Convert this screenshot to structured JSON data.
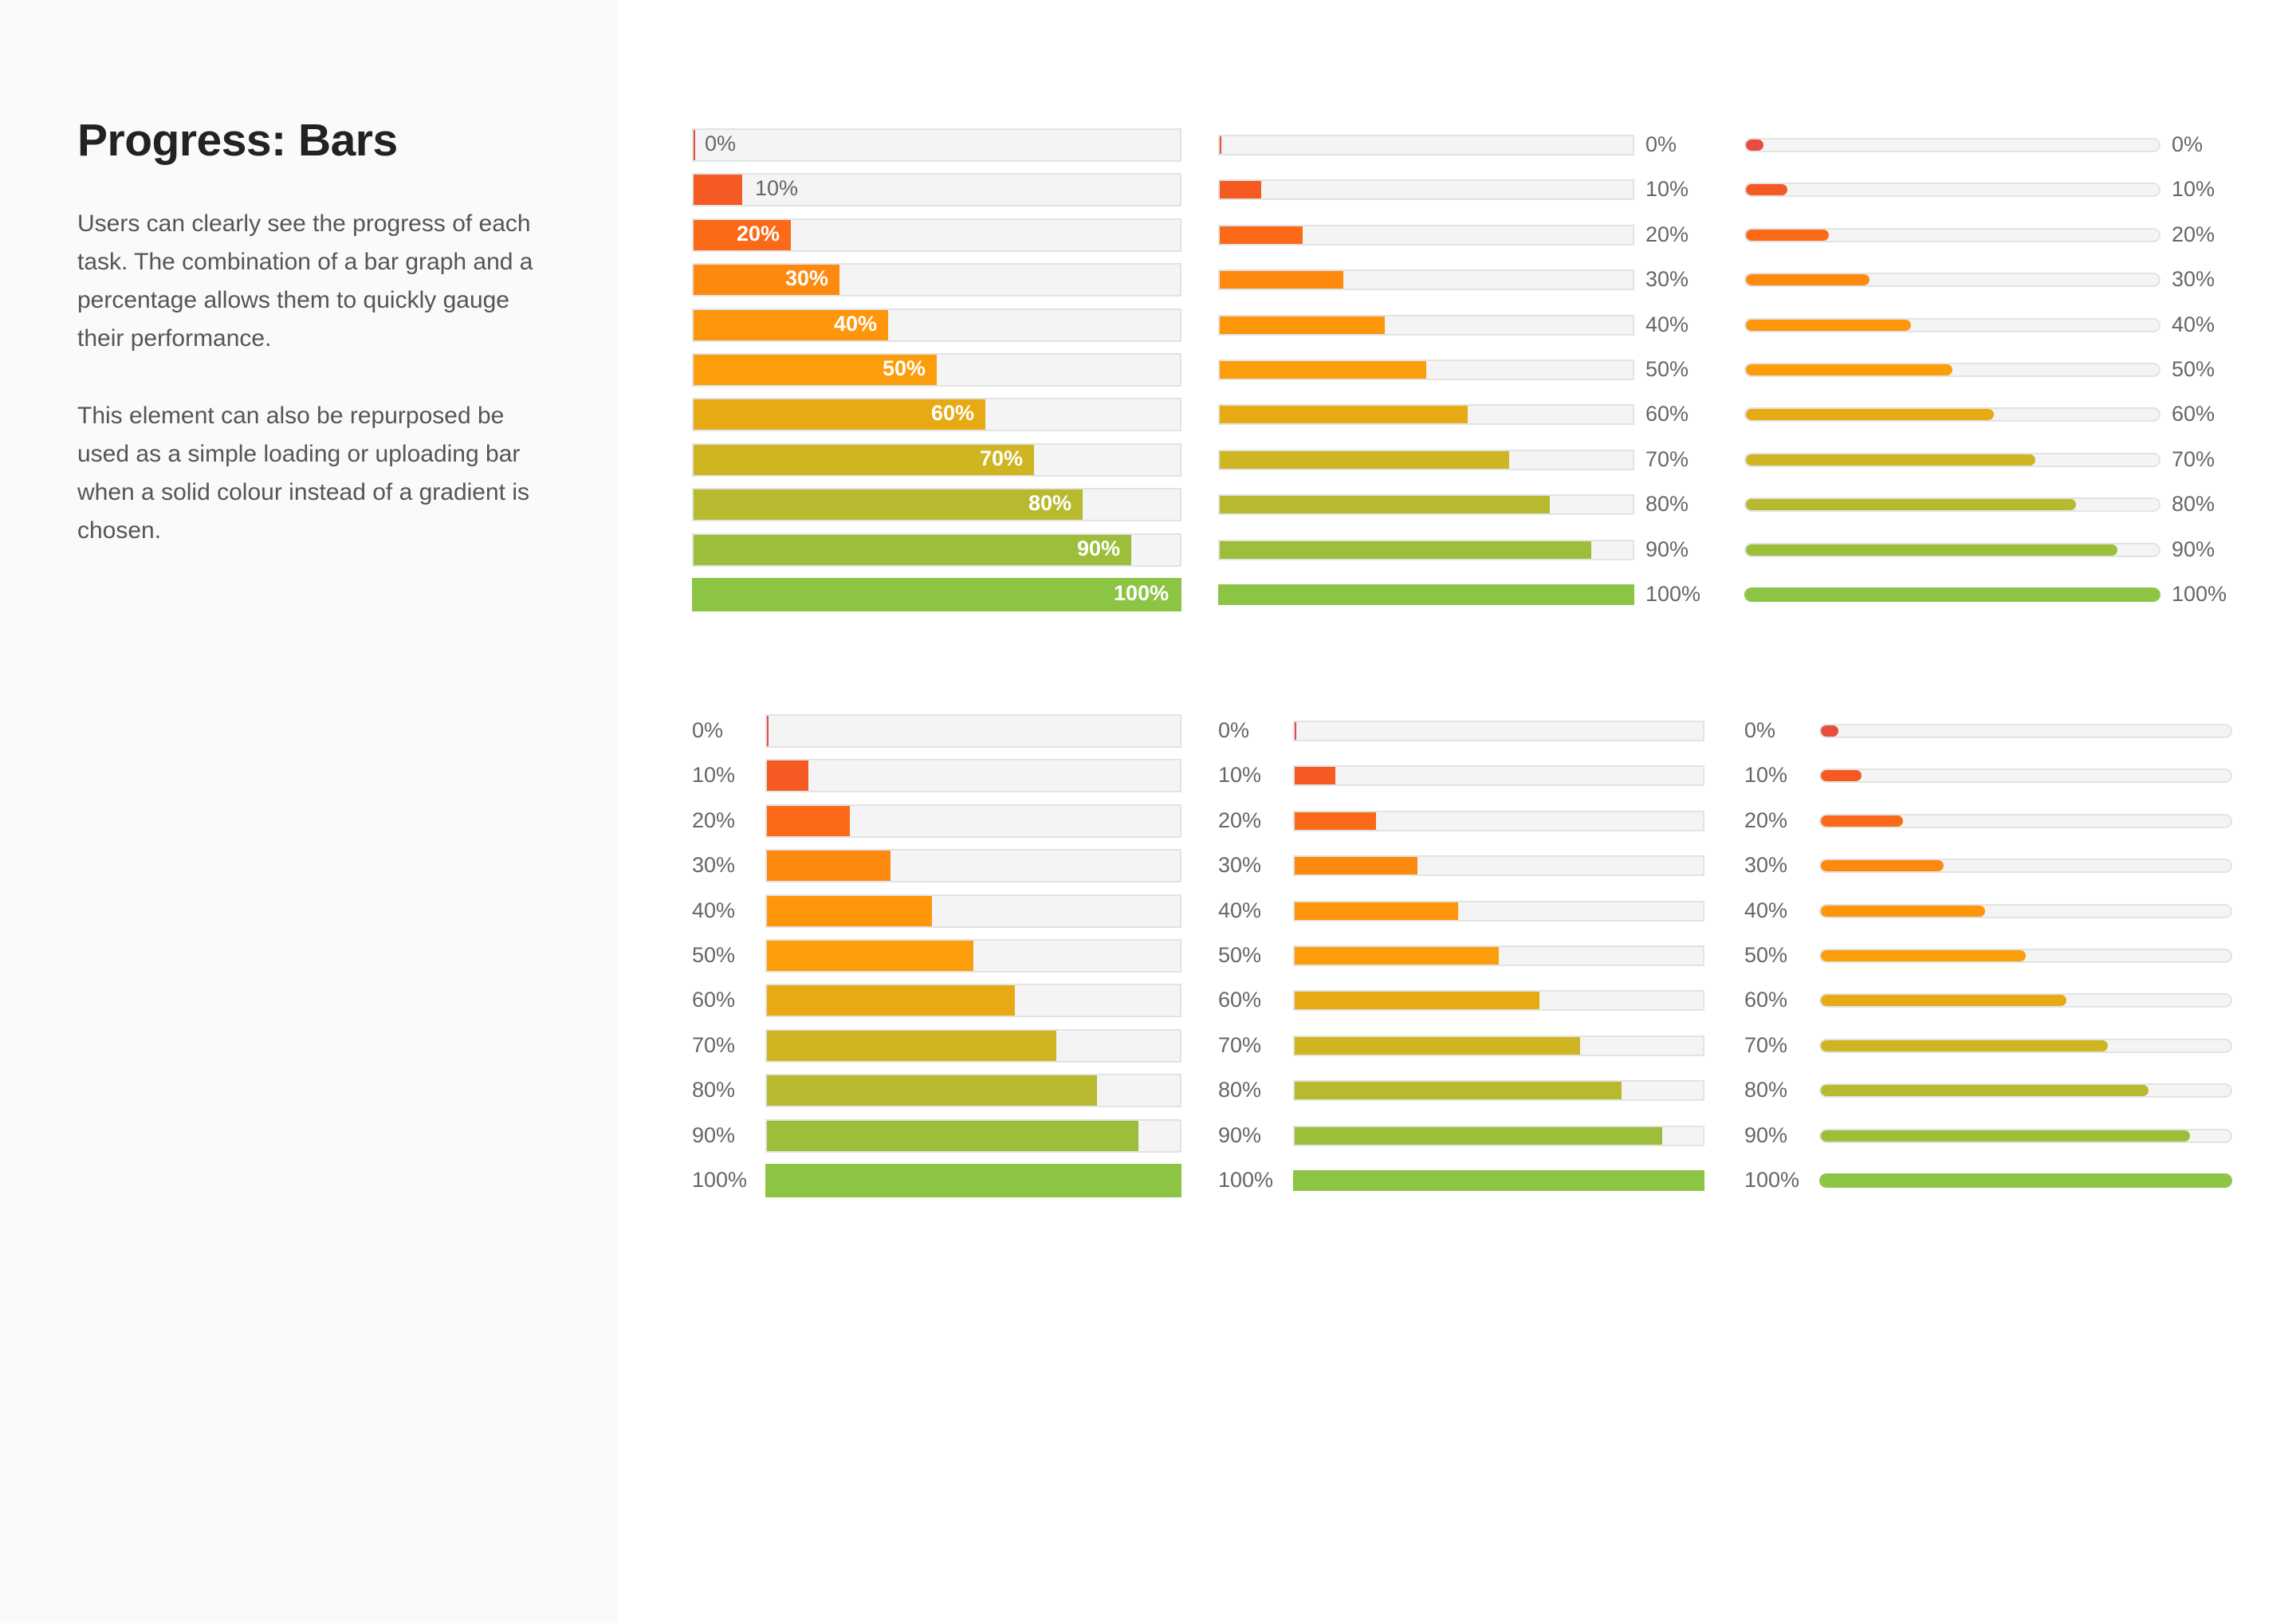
{
  "sidebar": {
    "title": "Progress: Bars",
    "paragraphs": [
      "Users can clearly see the progress of each task. The combination of a bar graph and a percentage allows them to quickly gauge their performance.",
      "This element can also be repurposed be used as a simple loading or uploading bar when a solid colour instead of a gradient is chosen."
    ]
  },
  "levels": [
    {
      "value": 0,
      "label": "0%",
      "color": "#e74c3c"
    },
    {
      "value": 10,
      "label": "10%",
      "color": "#f55a23"
    },
    {
      "value": 20,
      "label": "20%",
      "color": "#fa6a18"
    },
    {
      "value": 30,
      "label": "30%",
      "color": "#fd8a0e"
    },
    {
      "value": 40,
      "label": "40%",
      "color": "#fe960b"
    },
    {
      "value": 50,
      "label": "50%",
      "color": "#fc9d0c"
    },
    {
      "value": 60,
      "label": "60%",
      "color": "#e8aa14"
    },
    {
      "value": 70,
      "label": "70%",
      "color": "#cfb522"
    },
    {
      "value": 80,
      "label": "80%",
      "color": "#b7b92e"
    },
    {
      "value": 90,
      "label": "90%",
      "color": "#9cbe3a"
    },
    {
      "value": 100,
      "label": "100%",
      "color": "#8cc443"
    }
  ],
  "styles": [
    {
      "name": "thick-bars-label-inside"
    },
    {
      "name": "thin-bars-label-right"
    },
    {
      "name": "rounded-bars-label-right"
    },
    {
      "name": "thick-bars-label-left"
    },
    {
      "name": "thin-bars-label-left"
    },
    {
      "name": "rounded-bars-label-left"
    }
  ]
}
